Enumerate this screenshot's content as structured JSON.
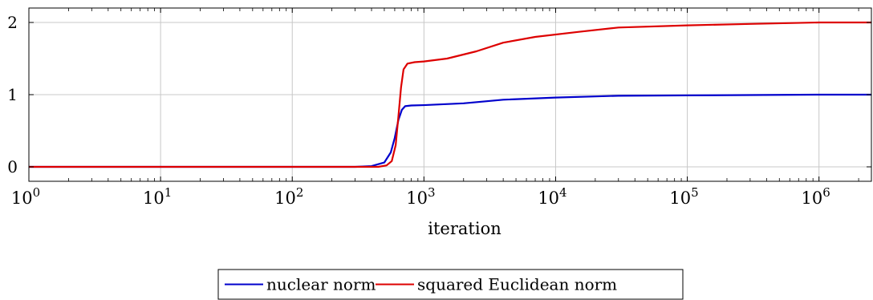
{
  "chart_data": {
    "type": "line",
    "xlabel": "iteration",
    "ylabel": "",
    "xscale": "log",
    "xlim": [
      1,
      2500000
    ],
    "ylim": [
      -0.2,
      2.2
    ],
    "grid": true,
    "legend_position": "bottom-center",
    "x_ticks": [
      {
        "value": 1,
        "base": "10",
        "exp": "0"
      },
      {
        "value": 10,
        "base": "10",
        "exp": "1"
      },
      {
        "value": 100,
        "base": "10",
        "exp": "2"
      },
      {
        "value": 1000,
        "base": "10",
        "exp": "3"
      },
      {
        "value": 10000,
        "base": "10",
        "exp": "4"
      },
      {
        "value": 100000,
        "base": "10",
        "exp": "5"
      },
      {
        "value": 1000000,
        "base": "10",
        "exp": "6"
      }
    ],
    "y_ticks": [
      {
        "value": 0,
        "label": "0"
      },
      {
        "value": 1,
        "label": "1"
      },
      {
        "value": 2,
        "label": "2"
      }
    ],
    "series": [
      {
        "name": "nuclear norm",
        "color": "#0000cc",
        "points": [
          [
            1,
            0
          ],
          [
            10,
            0
          ],
          [
            100,
            0
          ],
          [
            300,
            0
          ],
          [
            400,
            0.01
          ],
          [
            500,
            0.06
          ],
          [
            560,
            0.2
          ],
          [
            600,
            0.4
          ],
          [
            640,
            0.65
          ],
          [
            680,
            0.79
          ],
          [
            720,
            0.84
          ],
          [
            800,
            0.85
          ],
          [
            1000,
            0.855
          ],
          [
            2000,
            0.88
          ],
          [
            4000,
            0.93
          ],
          [
            10000,
            0.96
          ],
          [
            30000,
            0.985
          ],
          [
            100000,
            0.99
          ],
          [
            1000000,
            1.0
          ],
          [
            2500000,
            1.0
          ]
        ]
      },
      {
        "name": "squared Euclidean norm",
        "color": "#dd0000",
        "points": [
          [
            1,
            0
          ],
          [
            10,
            0
          ],
          [
            100,
            0
          ],
          [
            300,
            0
          ],
          [
            450,
            0.0
          ],
          [
            520,
            0.02
          ],
          [
            570,
            0.08
          ],
          [
            610,
            0.3
          ],
          [
            640,
            0.7
          ],
          [
            670,
            1.1
          ],
          [
            700,
            1.35
          ],
          [
            750,
            1.43
          ],
          [
            850,
            1.45
          ],
          [
            1000,
            1.46
          ],
          [
            1500,
            1.5
          ],
          [
            2500,
            1.6
          ],
          [
            4000,
            1.72
          ],
          [
            7000,
            1.8
          ],
          [
            15000,
            1.87
          ],
          [
            30000,
            1.93
          ],
          [
            100000,
            1.96
          ],
          [
            300000,
            1.98
          ],
          [
            1000000,
            2.0
          ],
          [
            2500000,
            2.0
          ]
        ]
      }
    ]
  }
}
